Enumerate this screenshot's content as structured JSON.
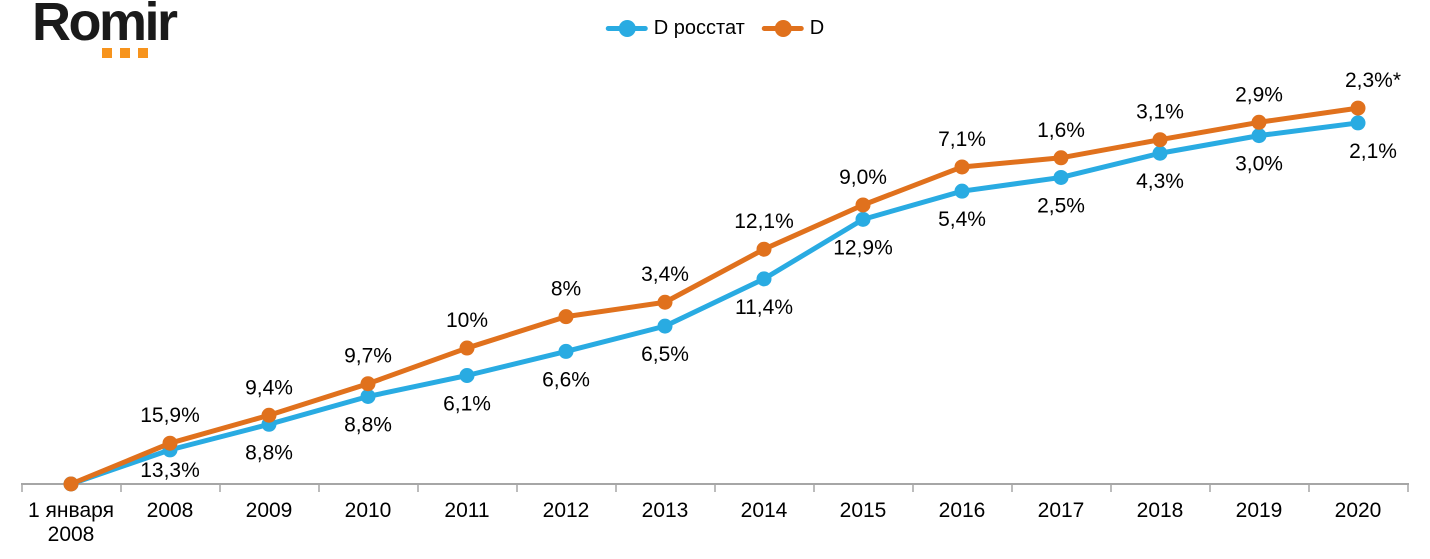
{
  "logo": {
    "text": "Romir",
    "text_color": "#1a1a1a",
    "dot_color": "#f7941d"
  },
  "legend": [
    {
      "name": "D росстат",
      "color": "#29abe2"
    },
    {
      "name": "D",
      "color": "#e0711d"
    }
  ],
  "chart_data": {
    "type": "line",
    "title": "",
    "categories": [
      "1 января\n2008",
      "2008",
      "2009",
      "2010",
      "2011",
      "2012",
      "2013",
      "2014",
      "2015",
      "2016",
      "2017",
      "2018",
      "2019",
      "2020"
    ],
    "baseline_index": 100,
    "series": [
      {
        "name": "D росстат",
        "color": "#29abe2",
        "label_position": "below",
        "yoy_growth_pct": [
          null,
          13.3,
          8.8,
          8.8,
          6.1,
          6.6,
          6.5,
          11.4,
          12.9,
          5.4,
          2.5,
          4.3,
          3.0,
          2.1
        ],
        "point_labels": [
          "",
          "13,3%",
          "8,8%",
          "8,8%",
          "6,1%",
          "6,6%",
          "6,5%",
          "11,4%",
          "12,9%",
          "5,4%",
          "2,5%",
          "4,3%",
          "3,0%",
          "2,1%"
        ],
        "cumulative_index": [
          100,
          113.3,
          123.27,
          134.12,
          142.3,
          151.69,
          161.55,
          179.97,
          203.18,
          214.16,
          219.51,
          228.95,
          235.82,
          240.77
        ]
      },
      {
        "name": "D",
        "color": "#e0711d",
        "label_position": "above",
        "yoy_growth_pct": [
          null,
          15.9,
          9.4,
          9.7,
          10,
          8,
          3.4,
          12.1,
          9.0,
          7.1,
          1.6,
          3.1,
          2.9,
          2.3
        ],
        "point_labels": [
          "",
          "15,9%",
          "9,4%",
          "9,7%",
          "10%",
          "8%",
          "3,4%",
          "12,1%",
          "9,0%",
          "7,1%",
          "1,6%",
          "3,1%",
          "2,9%",
          "2,3%*"
        ],
        "cumulative_index": [
          100,
          115.9,
          126.8,
          139.1,
          153.0,
          165.24,
          170.86,
          191.54,
          208.78,
          223.6,
          227.18,
          234.22,
          241.01,
          246.55
        ]
      }
    ],
    "grid": false,
    "y_axis_visible": false,
    "x_axis_color": "#a6a6a6",
    "label_color": "#000000",
    "legend_position": "top-center",
    "footnote_marker": "*"
  }
}
